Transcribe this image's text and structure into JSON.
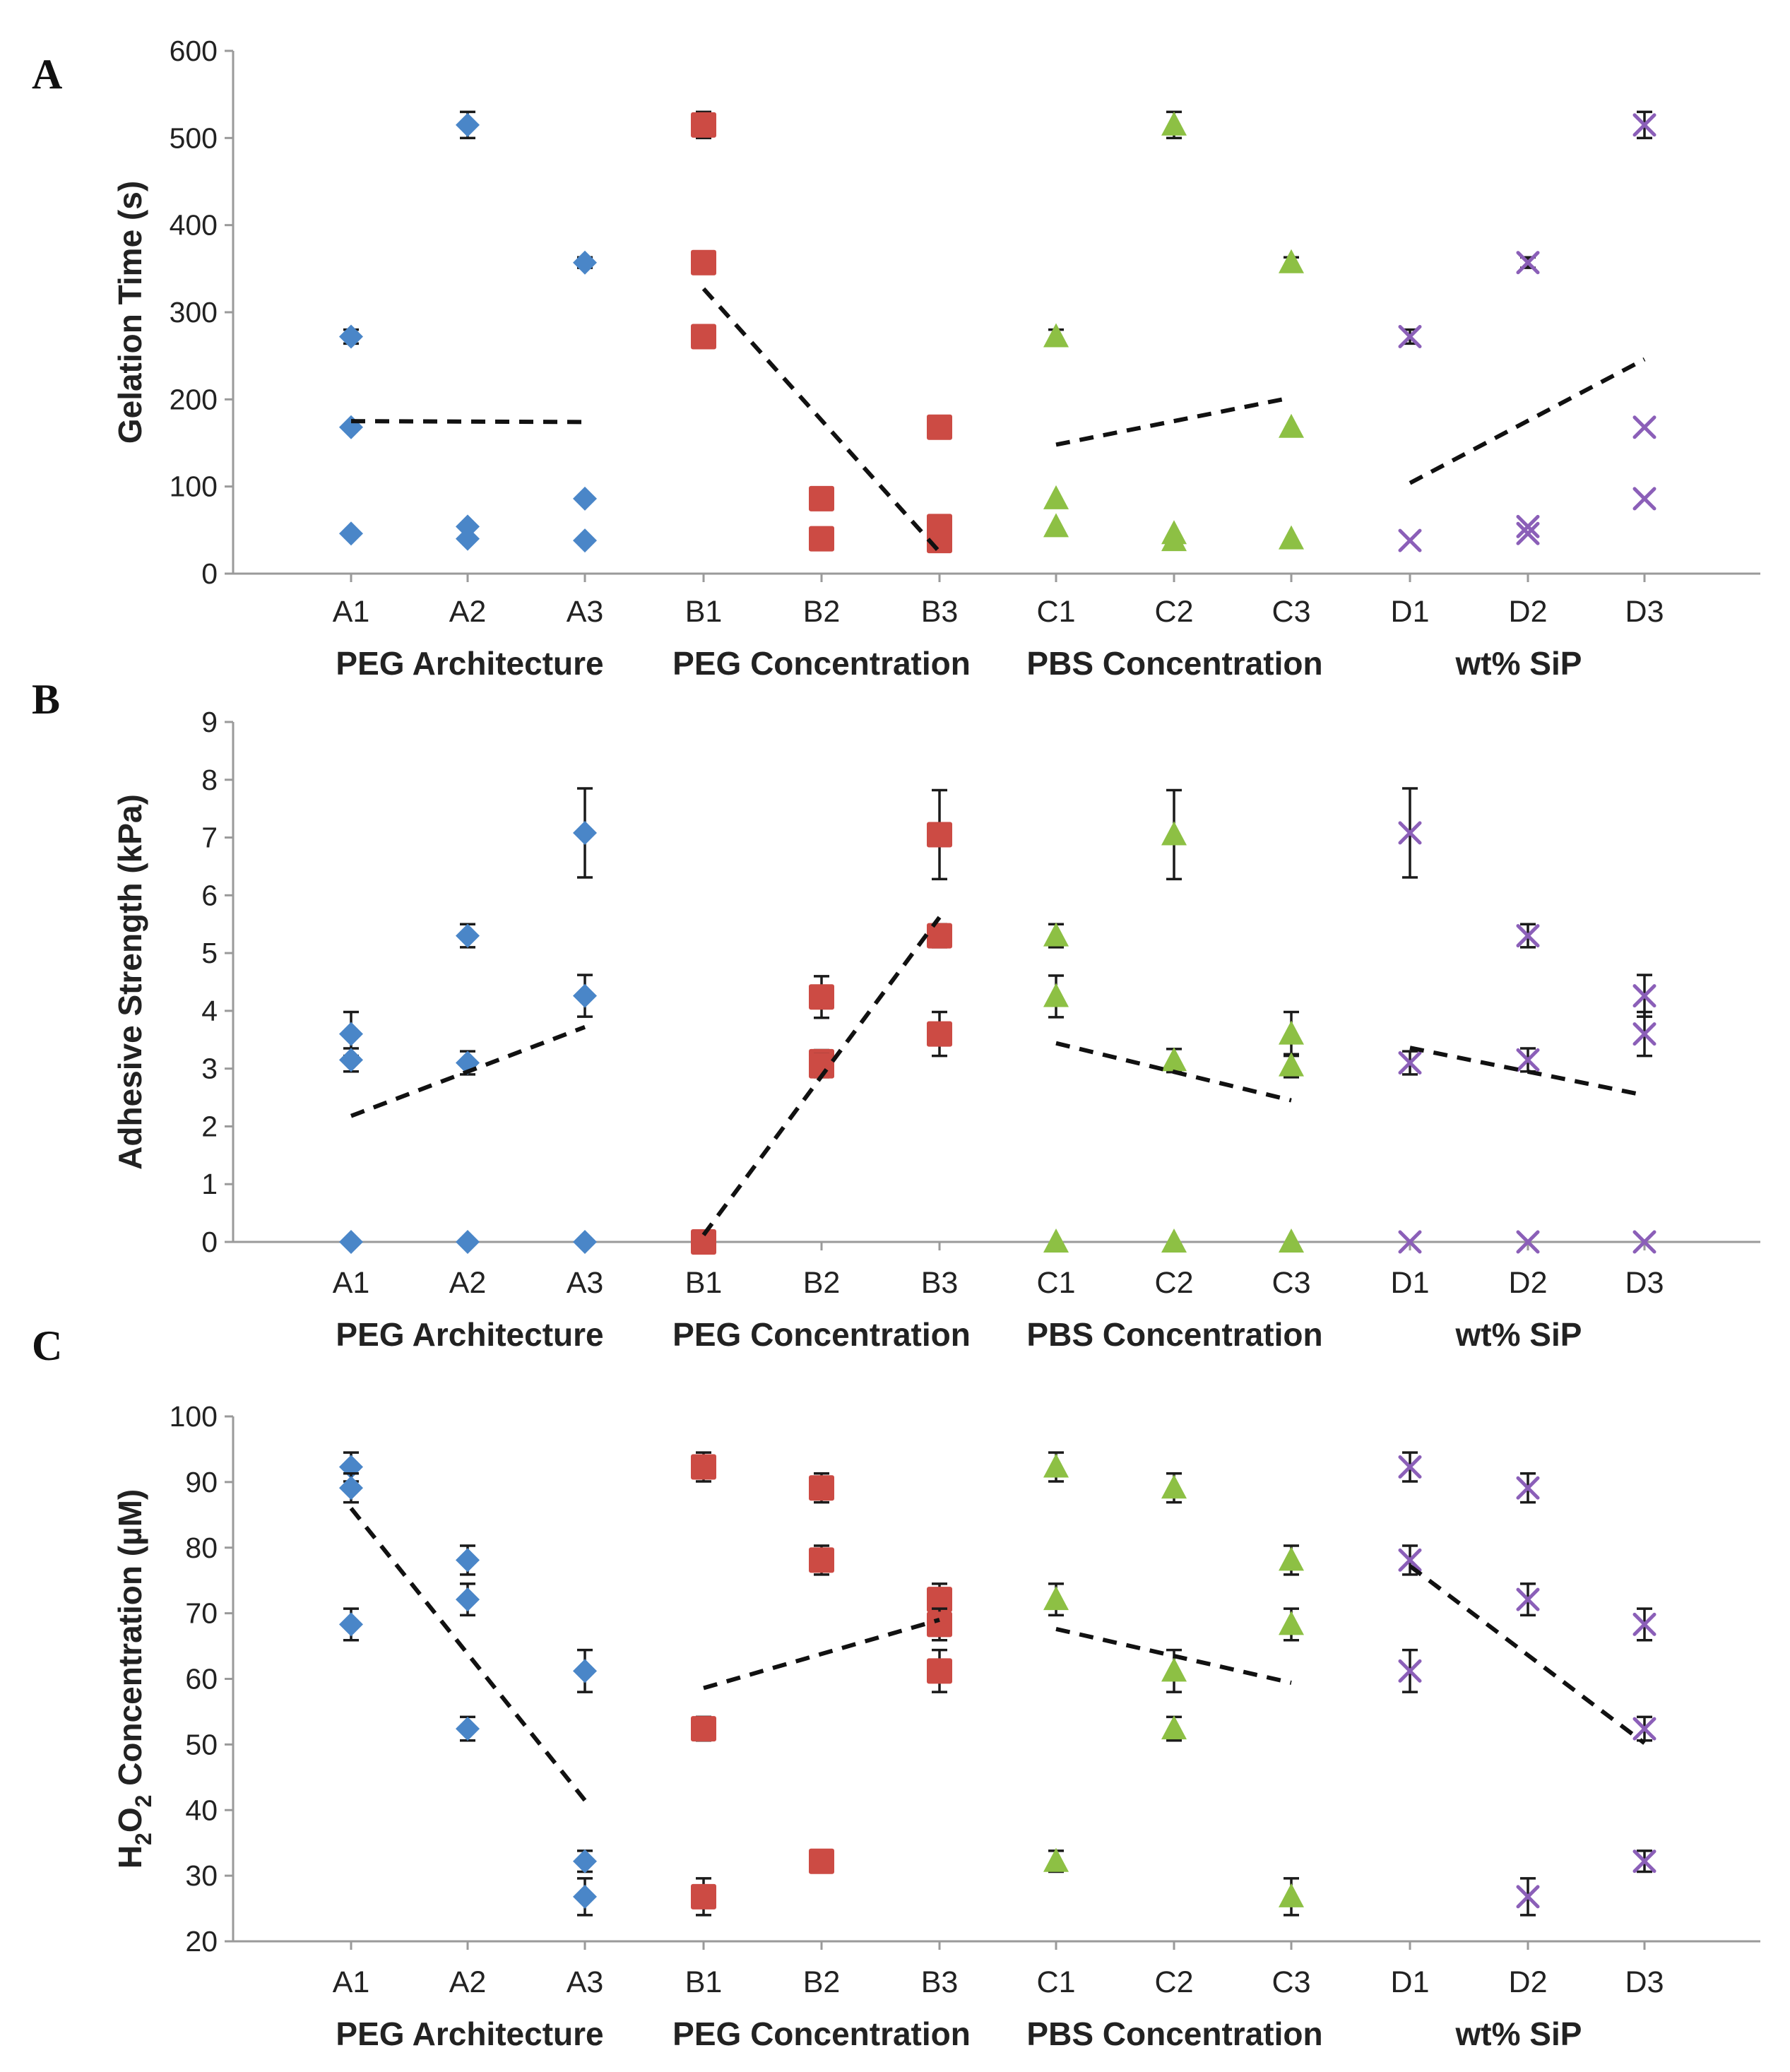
{
  "chart_data": [
    {
      "panel": "A",
      "type": "scatter",
      "ylabel": "Gelation Time (s)",
      "ylim": [
        0,
        600
      ],
      "yticks": [
        0,
        100,
        200,
        300,
        400,
        500,
        600
      ],
      "categories": [
        "A1",
        "A2",
        "A3",
        "B1",
        "B2",
        "B3",
        "C1",
        "C2",
        "C3",
        "D1",
        "D2",
        "D3"
      ],
      "groups": [
        "PEG Architecture",
        "PEG Concentration",
        "PBS Concentration",
        "wt% SiP"
      ],
      "series": [
        {
          "name": "PEG Architecture",
          "color": "#4a86c8",
          "marker": "diamond",
          "points": [
            {
              "x": "A1",
              "y": 272,
              "err": 8
            },
            {
              "x": "A1",
              "y": 168,
              "err": 0
            },
            {
              "x": "A1",
              "y": 46,
              "err": 0
            },
            {
              "x": "A2",
              "y": 515,
              "err": 15
            },
            {
              "x": "A2",
              "y": 54,
              "err": 0
            },
            {
              "x": "A2",
              "y": 40,
              "err": 0
            },
            {
              "x": "A3",
              "y": 357,
              "err": 6
            },
            {
              "x": "A3",
              "y": 86,
              "err": 0
            },
            {
              "x": "A3",
              "y": 38,
              "err": 0
            }
          ],
          "trend": {
            "from": [
              "A1",
              175
            ],
            "to": [
              "A3",
              174
            ]
          }
        },
        {
          "name": "PEG Concentration",
          "color": "#cc4b44",
          "marker": "square",
          "points": [
            {
              "x": "B1",
              "y": 515,
              "err": 15
            },
            {
              "x": "B1",
              "y": 357,
              "err": 6
            },
            {
              "x": "B1",
              "y": 272,
              "err": 8
            },
            {
              "x": "B2",
              "y": 86,
              "err": 0
            },
            {
              "x": "B2",
              "y": 40,
              "err": 0
            },
            {
              "x": "B3",
              "y": 168,
              "err": 0
            },
            {
              "x": "B3",
              "y": 54,
              "err": 0
            },
            {
              "x": "B3",
              "y": 38,
              "err": 0
            }
          ],
          "trend": {
            "from": [
              "B1",
              327
            ],
            "to": [
              "B3",
              25
            ]
          }
        },
        {
          "name": "PBS Concentration",
          "color": "#8dc044",
          "marker": "triangle",
          "points": [
            {
              "x": "C1",
              "y": 272,
              "err": 8
            },
            {
              "x": "C1",
              "y": 86,
              "err": 0
            },
            {
              "x": "C1",
              "y": 54,
              "err": 0
            },
            {
              "x": "C2",
              "y": 515,
              "err": 15
            },
            {
              "x": "C2",
              "y": 46,
              "err": 0
            },
            {
              "x": "C2",
              "y": 38,
              "err": 0
            },
            {
              "x": "C3",
              "y": 357,
              "err": 6
            },
            {
              "x": "C3",
              "y": 168,
              "err": 0
            },
            {
              "x": "C3",
              "y": 40,
              "err": 0
            }
          ],
          "trend": {
            "from": [
              "C1",
              148
            ],
            "to": [
              "C3",
              202
            ]
          }
        },
        {
          "name": "wt% SiP",
          "color": "#8b5fb8",
          "marker": "cross",
          "points": [
            {
              "x": "D1",
              "y": 272,
              "err": 8
            },
            {
              "x": "D1",
              "y": 38,
              "err": 0
            },
            {
              "x": "D2",
              "y": 357,
              "err": 6
            },
            {
              "x": "D2",
              "y": 54,
              "err": 0
            },
            {
              "x": "D2",
              "y": 46,
              "err": 0
            },
            {
              "x": "D3",
              "y": 515,
              "err": 15
            },
            {
              "x": "D3",
              "y": 168,
              "err": 0
            },
            {
              "x": "D3",
              "y": 86,
              "err": 0
            }
          ],
          "trend": {
            "from": [
              "D1",
              104
            ],
            "to": [
              "D3",
              246
            ]
          }
        }
      ]
    },
    {
      "panel": "B",
      "type": "scatter",
      "ylabel": "Adhesive Strength (kPa)",
      "ylim": [
        0,
        9
      ],
      "yticks": [
        0,
        1,
        2,
        3,
        4,
        5,
        6,
        7,
        8,
        9
      ],
      "categories": [
        "A1",
        "A2",
        "A3",
        "B1",
        "B2",
        "B3",
        "C1",
        "C2",
        "C3",
        "D1",
        "D2",
        "D3"
      ],
      "groups": [
        "PEG Architecture",
        "PEG Concentration",
        "PBS Concentration",
        "wt% SiP"
      ],
      "series": [
        {
          "name": "PEG Architecture",
          "color": "#4a86c8",
          "marker": "diamond",
          "points": [
            {
              "x": "A1",
              "y": 3.6,
              "err": 0.38
            },
            {
              "x": "A1",
              "y": 3.15,
              "err": 0.2
            },
            {
              "x": "A1",
              "y": 0,
              "err": 0
            },
            {
              "x": "A2",
              "y": 5.3,
              "err": 0.2
            },
            {
              "x": "A2",
              "y": 3.1,
              "err": 0.2
            },
            {
              "x": "A2",
              "y": 0,
              "err": 0
            },
            {
              "x": "A3",
              "y": 7.08,
              "err": 0.77
            },
            {
              "x": "A3",
              "y": 4.26,
              "err": 0.36
            },
            {
              "x": "A3",
              "y": 0,
              "err": 0
            }
          ],
          "trend": {
            "from": [
              "A1",
              2.18
            ],
            "to": [
              "A3",
              3.72
            ]
          }
        },
        {
          "name": "PEG Concentration",
          "color": "#cc4b44",
          "marker": "square",
          "points": [
            {
              "x": "B1",
              "y": 0,
              "err": 0
            },
            {
              "x": "B2",
              "y": 4.24,
              "err": 0.36
            },
            {
              "x": "B2",
              "y": 3.12,
              "err": 0.2
            },
            {
              "x": "B2",
              "y": 3.05,
              "err": 0.2
            },
            {
              "x": "B3",
              "y": 7.05,
              "err": 0.77
            },
            {
              "x": "B3",
              "y": 5.3,
              "err": 0.2
            },
            {
              "x": "B3",
              "y": 3.6,
              "err": 0.38
            }
          ],
          "trend": {
            "from": [
              "B1",
              0.12
            ],
            "to": [
              "B3",
              5.62
            ]
          }
        },
        {
          "name": "PBS Concentration",
          "color": "#8dc044",
          "marker": "triangle",
          "points": [
            {
              "x": "C1",
              "y": 5.3,
              "err": 0.2
            },
            {
              "x": "C1",
              "y": 4.25,
              "err": 0.36
            },
            {
              "x": "C1",
              "y": 0,
              "err": 0
            },
            {
              "x": "C2",
              "y": 7.05,
              "err": 0.77
            },
            {
              "x": "C2",
              "y": 3.14,
              "err": 0.2
            },
            {
              "x": "C2",
              "y": 0,
              "err": 0
            },
            {
              "x": "C3",
              "y": 3.6,
              "err": 0.38
            },
            {
              "x": "C3",
              "y": 3.05,
              "err": 0.2
            },
            {
              "x": "C3",
              "y": 0,
              "err": 0
            }
          ],
          "trend": {
            "from": [
              "C1",
              3.44
            ],
            "to": [
              "C3",
              2.45
            ]
          }
        },
        {
          "name": "wt% SiP",
          "color": "#8b5fb8",
          "marker": "cross",
          "points": [
            {
              "x": "D1",
              "y": 7.08,
              "err": 0.77
            },
            {
              "x": "D1",
              "y": 3.1,
              "err": 0.2
            },
            {
              "x": "D1",
              "y": 0,
              "err": 0
            },
            {
              "x": "D2",
              "y": 5.3,
              "err": 0.2
            },
            {
              "x": "D2",
              "y": 3.15,
              "err": 0.2
            },
            {
              "x": "D2",
              "y": 0,
              "err": 0
            },
            {
              "x": "D3",
              "y": 4.26,
              "err": 0.36
            },
            {
              "x": "D3",
              "y": 3.6,
              "err": 0.38
            },
            {
              "x": "D3",
              "y": 0,
              "err": 0
            }
          ],
          "trend": {
            "from": [
              "D1",
              3.36
            ],
            "to": [
              "D3",
              2.54
            ]
          }
        }
      ]
    },
    {
      "panel": "C",
      "type": "scatter",
      "ylabel": "H2O2 Concentration (µM)",
      "ylim": [
        20,
        100
      ],
      "yticks": [
        20,
        30,
        40,
        50,
        60,
        70,
        80,
        90,
        100
      ],
      "categories": [
        "A1",
        "A2",
        "A3",
        "B1",
        "B2",
        "B3",
        "C1",
        "C2",
        "C3",
        "D1",
        "D2",
        "D3"
      ],
      "groups": [
        "PEG Architecture",
        "PEG Concentration",
        "PBS Concentration",
        "wt% SiP"
      ],
      "series": [
        {
          "name": "PEG Architecture",
          "color": "#4a86c8",
          "marker": "diamond",
          "points": [
            {
              "x": "A1",
              "y": 92.3,
              "err": 2.2
            },
            {
              "x": "A1",
              "y": 89.1,
              "err": 2.2
            },
            {
              "x": "A1",
              "y": 68.3,
              "err": 2.4
            },
            {
              "x": "A2",
              "y": 78.1,
              "err": 2.2
            },
            {
              "x": "A2",
              "y": 72.1,
              "err": 2.4
            },
            {
              "x": "A2",
              "y": 52.4,
              "err": 1.8
            },
            {
              "x": "A3",
              "y": 61.2,
              "err": 3.2
            },
            {
              "x": "A3",
              "y": 32.2,
              "err": 1.6
            },
            {
              "x": "A3",
              "y": 26.8,
              "err": 2.8
            }
          ],
          "trend": {
            "from": [
              "A1",
              86
            ],
            "to": [
              "A3",
              41.5
            ]
          }
        },
        {
          "name": "PEG Concentration",
          "color": "#cc4b44",
          "marker": "square",
          "points": [
            {
              "x": "B1",
              "y": 92.3,
              "err": 2.2
            },
            {
              "x": "B1",
              "y": 52.4,
              "err": 1.8
            },
            {
              "x": "B1",
              "y": 26.8,
              "err": 2.8
            },
            {
              "x": "B2",
              "y": 89.1,
              "err": 2.2
            },
            {
              "x": "B2",
              "y": 78.1,
              "err": 2.2
            },
            {
              "x": "B2",
              "y": 32.2,
              "err": 1.6
            },
            {
              "x": "B3",
              "y": 72.1,
              "err": 2.4
            },
            {
              "x": "B3",
              "y": 68.3,
              "err": 2.4
            },
            {
              "x": "B3",
              "y": 61.2,
              "err": 3.2
            }
          ],
          "trend": {
            "from": [
              "B1",
              58.6
            ],
            "to": [
              "B3",
              69
            ]
          }
        },
        {
          "name": "PBS Concentration",
          "color": "#8dc044",
          "marker": "triangle",
          "points": [
            {
              "x": "C1",
              "y": 92.3,
              "err": 2.2
            },
            {
              "x": "C1",
              "y": 72.1,
              "err": 2.4
            },
            {
              "x": "C1",
              "y": 32.2,
              "err": 1.6
            },
            {
              "x": "C2",
              "y": 89.1,
              "err": 2.2
            },
            {
              "x": "C2",
              "y": 61.2,
              "err": 3.2
            },
            {
              "x": "C2",
              "y": 52.4,
              "err": 1.8
            },
            {
              "x": "C3",
              "y": 78.1,
              "err": 2.2
            },
            {
              "x": "C3",
              "y": 68.3,
              "err": 2.4
            },
            {
              "x": "C3",
              "y": 26.8,
              "err": 2.8
            }
          ],
          "trend": {
            "from": [
              "C1",
              67.6
            ],
            "to": [
              "C3",
              59.4
            ]
          }
        },
        {
          "name": "wt% SiP",
          "color": "#8b5fb8",
          "marker": "cross",
          "points": [
            {
              "x": "D1",
              "y": 92.3,
              "err": 2.2
            },
            {
              "x": "D1",
              "y": 78.1,
              "err": 2.2
            },
            {
              "x": "D1",
              "y": 61.2,
              "err": 3.2
            },
            {
              "x": "D2",
              "y": 89.1,
              "err": 2.2
            },
            {
              "x": "D2",
              "y": 72.1,
              "err": 2.4
            },
            {
              "x": "D2",
              "y": 26.8,
              "err": 2.8
            },
            {
              "x": "D3",
              "y": 68.3,
              "err": 2.4
            },
            {
              "x": "D3",
              "y": 52.4,
              "err": 1.8
            },
            {
              "x": "D3",
              "y": 32.2,
              "err": 1.6
            }
          ],
          "trend": {
            "from": [
              "D1",
              77.2
            ],
            "to": [
              "D3",
              50.2
            ]
          }
        }
      ]
    }
  ]
}
